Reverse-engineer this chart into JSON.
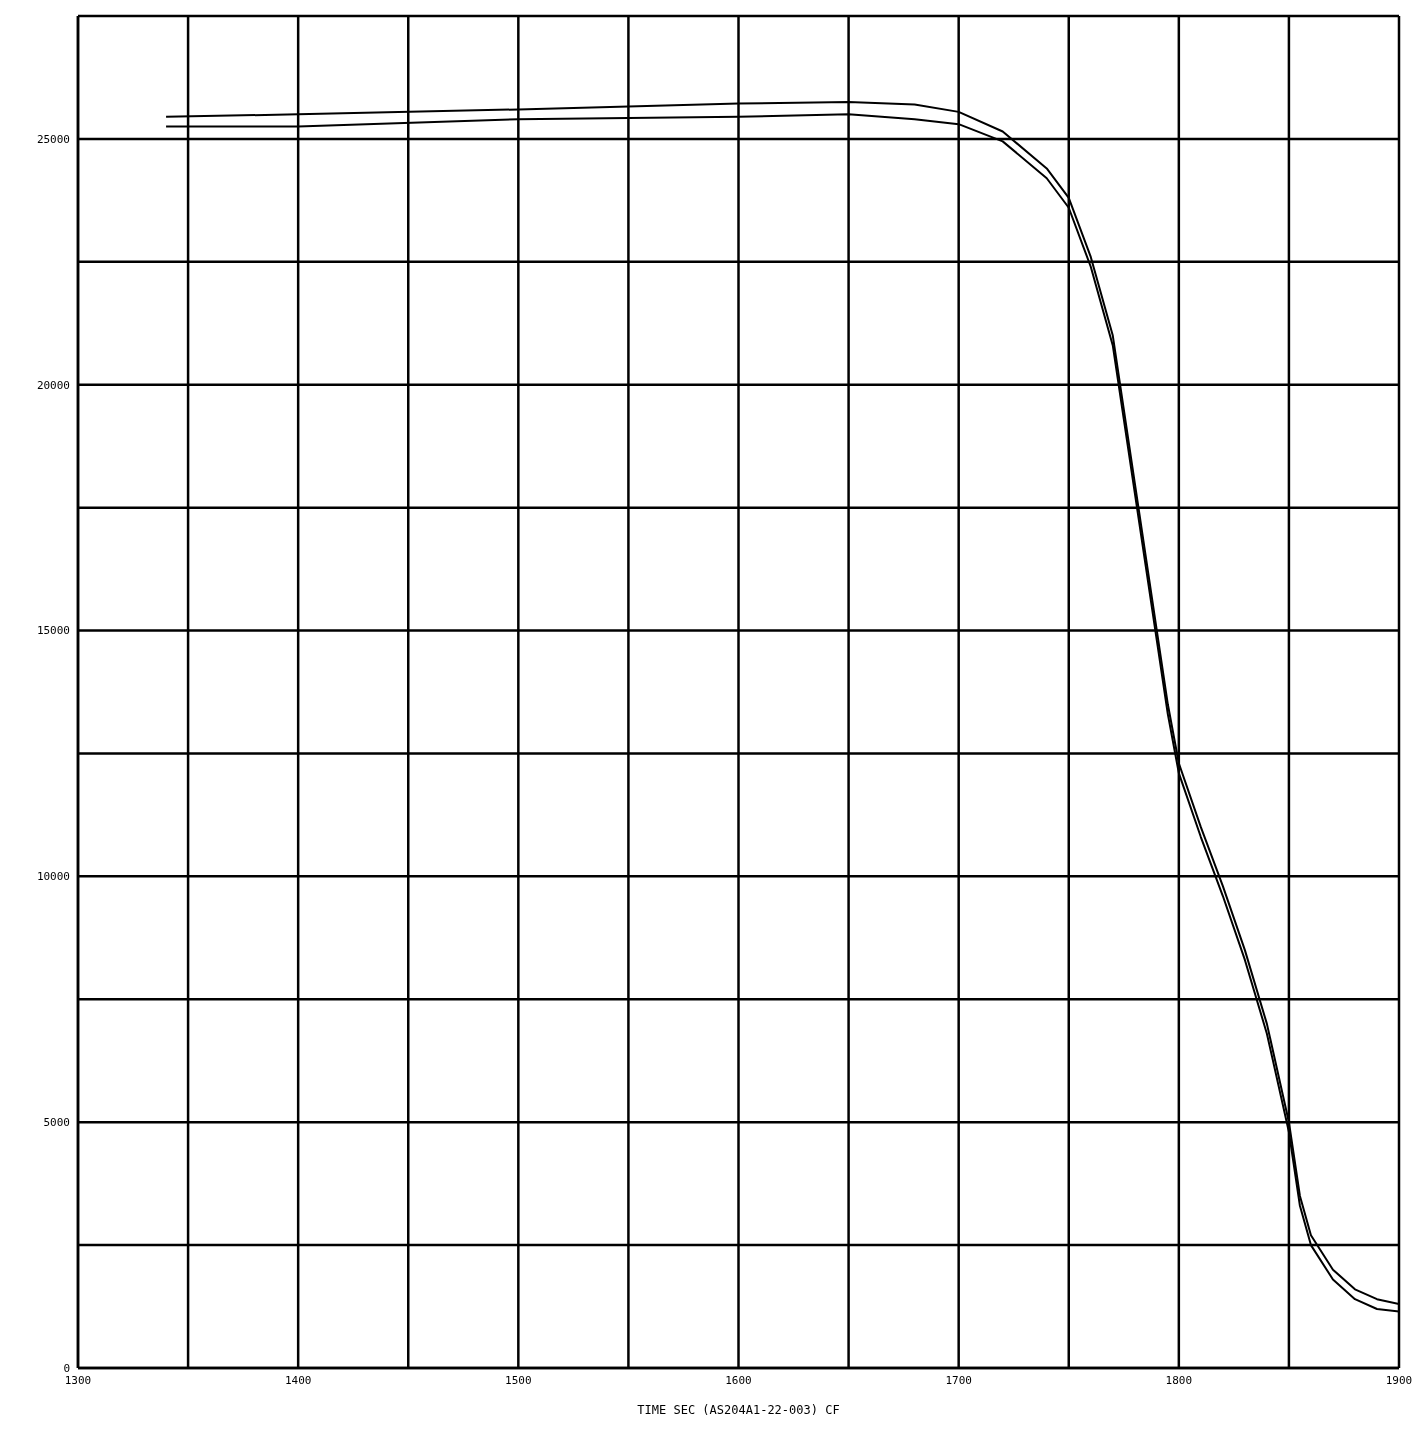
{
  "chart_data": {
    "type": "line",
    "xlabel": "TIME SEC (AS204A1-22-003) CF",
    "xlim": [
      1300,
      1900
    ],
    "ylim": [
      0,
      27500
    ],
    "xticks": [
      1300,
      {
        "value": 1350,
        "label": null
      },
      1400,
      {
        "value": 1450,
        "label": null
      },
      1500,
      {
        "value": 1550,
        "label": null
      },
      1600,
      {
        "value": 1650,
        "label": null
      },
      1700,
      {
        "value": 1750,
        "label": null
      },
      1800,
      {
        "value": 1850,
        "label": null
      },
      1900
    ],
    "yticks": [
      0,
      {
        "value": 2500,
        "label": null
      },
      5000,
      {
        "value": 7500,
        "label": null
      },
      10000,
      {
        "value": 12500,
        "label": null
      },
      15000,
      {
        "value": 17500,
        "label": null
      },
      20000,
      {
        "value": 22500,
        "label": null
      },
      25000
    ],
    "grid": true,
    "marker": "none",
    "line_style": "solid",
    "series": [
      {
        "color": "#000000",
        "x": [
          1340,
          1400,
          1500,
          1600,
          1650,
          1680,
          1700,
          1720,
          1740,
          1750,
          1760,
          1770,
          1775,
          1780,
          1785,
          1790,
          1795,
          1800,
          1810,
          1820,
          1830,
          1840,
          1850,
          1855,
          1860,
          1870,
          1880,
          1890,
          1900
        ],
        "values": [
          25450,
          25500,
          25600,
          25720,
          25750,
          25700,
          25550,
          25150,
          24400,
          23800,
          22600,
          21000,
          19500,
          18000,
          16500,
          15000,
          13500,
          12300,
          11000,
          9800,
          8500,
          7000,
          5000,
          3500,
          2700,
          2000,
          1600,
          1400,
          1300
        ]
      },
      {
        "color": "#000000",
        "x": [
          1340,
          1400,
          1500,
          1600,
          1650,
          1680,
          1700,
          1720,
          1740,
          1750,
          1760,
          1770,
          1775,
          1780,
          1785,
          1790,
          1795,
          1800,
          1810,
          1820,
          1830,
          1840,
          1850,
          1855,
          1860,
          1870,
          1880,
          1890,
          1900
        ],
        "values": [
          25250,
          25250,
          25400,
          25450,
          25500,
          25400,
          25300,
          24950,
          24200,
          23600,
          22400,
          20800,
          19300,
          17800,
          16300,
          14800,
          13300,
          12100,
          10800,
          9600,
          8300,
          6800,
          4800,
          3300,
          2500,
          1800,
          1400,
          1200,
          1150
        ]
      }
    ]
  }
}
